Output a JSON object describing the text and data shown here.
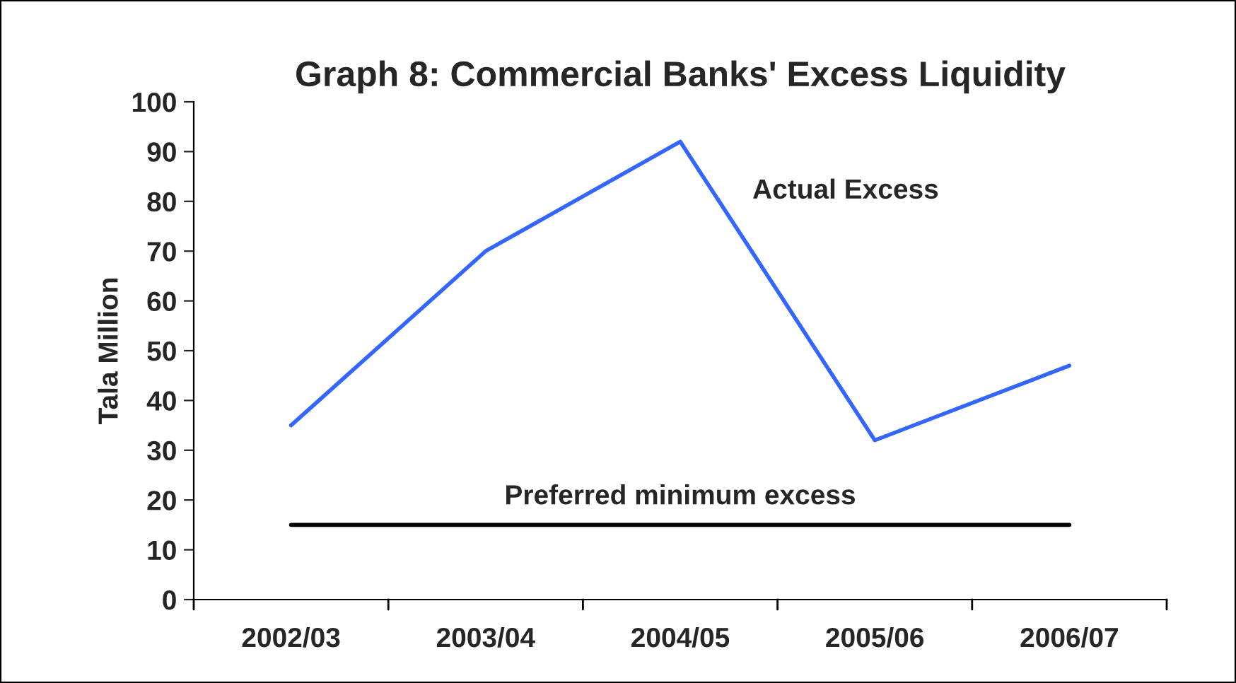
{
  "chart_data": {
    "type": "line",
    "title": "Graph 8: Commercial Banks' Excess Liquidity",
    "ylabel": "Tala Million",
    "categories": [
      "2002/03",
      "2003/04",
      "2004/05",
      "2005/06",
      "2006/07"
    ],
    "series": [
      {
        "name": "Actual Excess",
        "color": "#3366ff",
        "values": [
          35,
          70,
          92,
          32,
          47
        ]
      },
      {
        "name": "Preferred minimum excess",
        "color": "#000000",
        "values": [
          15,
          15,
          15,
          15,
          15
        ]
      }
    ],
    "ylim": [
      0,
      100
    ],
    "yticks": [
      0,
      10,
      20,
      30,
      40,
      50,
      60,
      70,
      80,
      90,
      100
    ],
    "grid": false,
    "legend": false,
    "marker": "none",
    "line_style": "solid"
  }
}
